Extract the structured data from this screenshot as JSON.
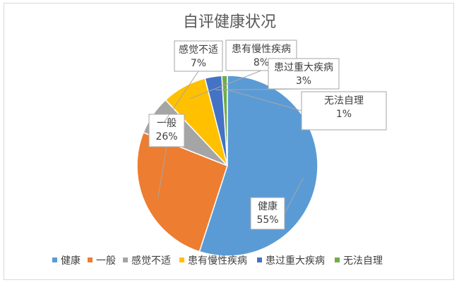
{
  "chart_data": {
    "type": "pie",
    "title": "自评健康状况",
    "categories": [
      "健康",
      "一般",
      "感觉不适",
      "患有慢性疾病",
      "患过重大疾病",
      "无法自理"
    ],
    "values": [
      55,
      26,
      7,
      8,
      3,
      1
    ],
    "percent_labels": [
      "55%",
      "26%",
      "7%",
      "8%",
      "3%",
      "1%"
    ],
    "colors": [
      "#5b9bd5",
      "#ed7d31",
      "#a5a5a5",
      "#ffc000",
      "#4472c4",
      "#70ad47"
    ],
    "legend_position": "bottom",
    "data_label_style": "callout"
  }
}
